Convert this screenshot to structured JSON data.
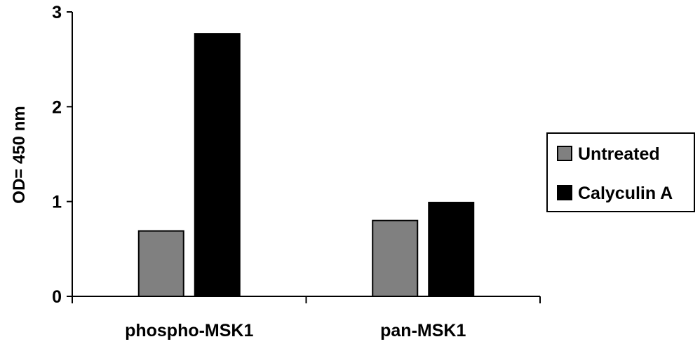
{
  "chart_data": {
    "type": "bar",
    "categories": [
      "phospho-MSK1",
      "pan-MSK1"
    ],
    "series": [
      {
        "name": "Untreated",
        "values": [
          0.69,
          0.8
        ],
        "color": "#808080"
      },
      {
        "name": "Calyculin A",
        "values": [
          2.77,
          0.99
        ],
        "color": "#000000"
      }
    ],
    "xlabel": "",
    "ylabel": "OD= 450 nm",
    "ylim": [
      0,
      3
    ],
    "yticks": [
      "0",
      "1",
      "2",
      "3"
    ],
    "grid": false,
    "legend_position": "right"
  }
}
